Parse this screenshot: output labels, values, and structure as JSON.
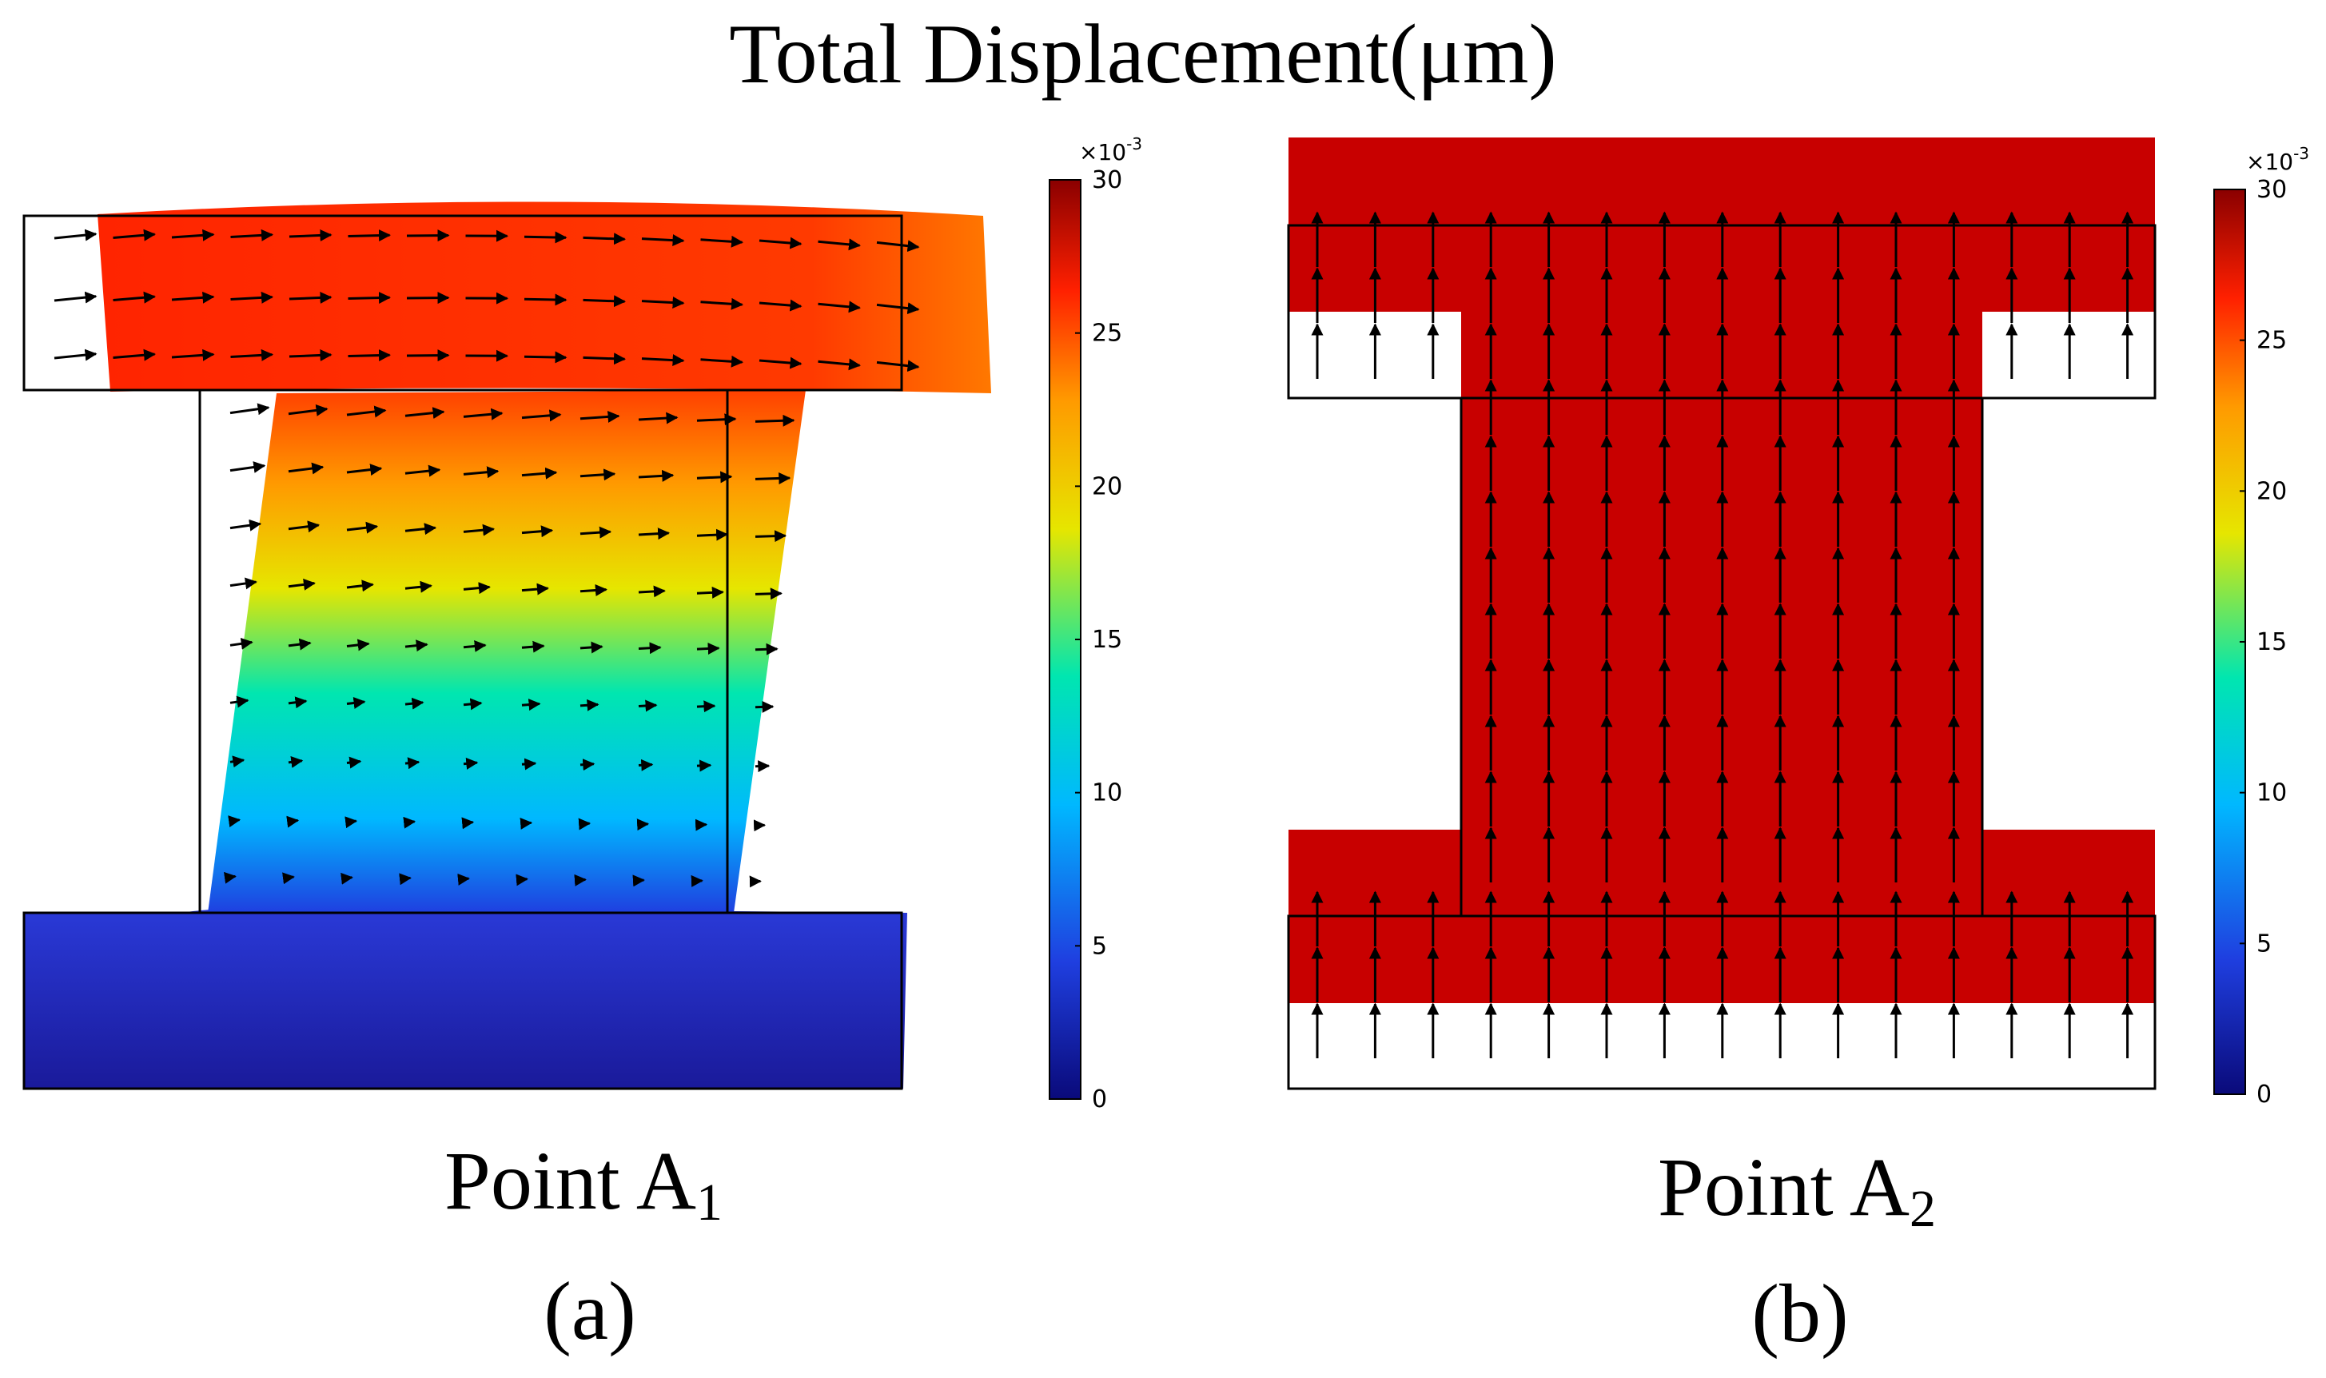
{
  "title": "Total Displacement(μm)",
  "colormap": [
    "#0a0a7a",
    "#1f3fe0",
    "#00b8ff",
    "#00e6b0",
    "#e6e600",
    "#ff9a00",
    "#ff2000",
    "#8a0000"
  ],
  "panel_a": {
    "point": "Point A",
    "subscript": "1",
    "label": "(a)",
    "colorbar": {
      "multiplier": "×10",
      "exponent": "-3",
      "ticks": [
        "0",
        "5",
        "10",
        "15",
        "20",
        "25",
        "30"
      ]
    }
  },
  "panel_b": {
    "point": "Point A",
    "subscript": "2",
    "label": "(b)",
    "fill_color": "#c80000",
    "colorbar": {
      "multiplier": "×10",
      "exponent": "-3",
      "ticks": [
        "0",
        "5",
        "10",
        "15",
        "20",
        "25",
        "30"
      ]
    }
  }
}
